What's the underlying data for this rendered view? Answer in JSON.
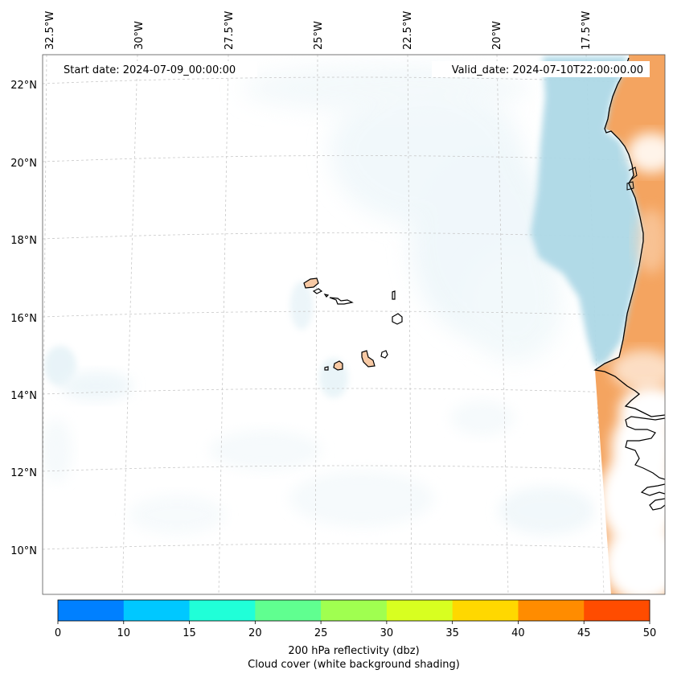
{
  "map": {
    "start_date": "Start date: 2024-07-09_00:00:00",
    "valid_date": "Valid_date: 2024-07-10T22:00:00.00",
    "longitude_labels": [
      "32.5°W",
      "30°W",
      "27.5°W",
      "25°W",
      "22.5°W",
      "20°W",
      "17.5°W"
    ],
    "latitude_labels": [
      "22°N",
      "20°N",
      "18°N",
      "16°N",
      "14°N",
      "12°N",
      "10°N"
    ],
    "colors": {
      "ocean": "#ffffff",
      "land": "#f4a460",
      "cloud": "#add8e6",
      "coast": "#000000",
      "grid": "#c8c8c8"
    }
  },
  "colorbar": {
    "ticks": [
      "0",
      "10",
      "15",
      "20",
      "25",
      "30",
      "35",
      "40",
      "45",
      "50"
    ],
    "colors": [
      "#0080ff",
      "#00c8ff",
      "#20ffd8",
      "#60ff90",
      "#a0ff50",
      "#d8ff20",
      "#ffd800",
      "#ff8c00",
      "#ff4c00"
    ],
    "label_line1": "200 hPa reflectivity (dbz)",
    "label_line2": "Cloud cover (white background shading)"
  }
}
